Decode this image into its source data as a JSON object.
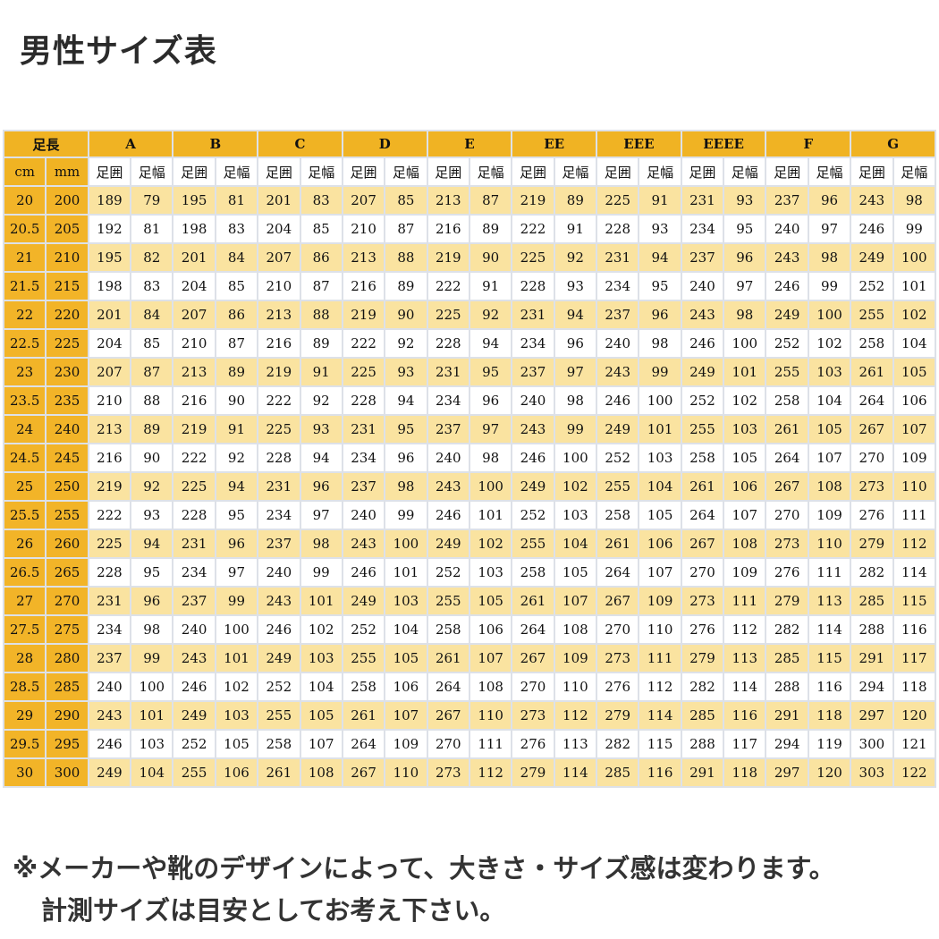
{
  "title": "男性サイズ表",
  "table": {
    "length_header": "足長",
    "width_headers": [
      "A",
      "B",
      "C",
      "D",
      "E",
      "EE",
      "EEE",
      "EEEE",
      "F",
      "G"
    ],
    "unit_headers": [
      "cm",
      "mm"
    ],
    "sub_headers": [
      "足囲",
      "足幅"
    ],
    "colors": {
      "header": "#f0b323",
      "row_highlight": "#fae3a0",
      "border": "#dde1e8"
    },
    "rows": [
      [
        "20",
        "200",
        "189",
        "79",
        "195",
        "81",
        "201",
        "83",
        "207",
        "85",
        "213",
        "87",
        "219",
        "89",
        "225",
        "91",
        "231",
        "93",
        "237",
        "96",
        "243",
        "98"
      ],
      [
        "20.5",
        "205",
        "192",
        "81",
        "198",
        "83",
        "204",
        "85",
        "210",
        "87",
        "216",
        "89",
        "222",
        "91",
        "228",
        "93",
        "234",
        "95",
        "240",
        "97",
        "246",
        "99"
      ],
      [
        "21",
        "210",
        "195",
        "82",
        "201",
        "84",
        "207",
        "86",
        "213",
        "88",
        "219",
        "90",
        "225",
        "92",
        "231",
        "94",
        "237",
        "96",
        "243",
        "98",
        "249",
        "100"
      ],
      [
        "21.5",
        "215",
        "198",
        "83",
        "204",
        "85",
        "210",
        "87",
        "216",
        "89",
        "222",
        "91",
        "228",
        "93",
        "234",
        "95",
        "240",
        "97",
        "246",
        "99",
        "252",
        "101"
      ],
      [
        "22",
        "220",
        "201",
        "84",
        "207",
        "86",
        "213",
        "88",
        "219",
        "90",
        "225",
        "92",
        "231",
        "94",
        "237",
        "96",
        "243",
        "98",
        "249",
        "100",
        "255",
        "102"
      ],
      [
        "22.5",
        "225",
        "204",
        "85",
        "210",
        "87",
        "216",
        "89",
        "222",
        "92",
        "228",
        "94",
        "234",
        "96",
        "240",
        "98",
        "246",
        "100",
        "252",
        "102",
        "258",
        "104"
      ],
      [
        "23",
        "230",
        "207",
        "87",
        "213",
        "89",
        "219",
        "91",
        "225",
        "93",
        "231",
        "95",
        "237",
        "97",
        "243",
        "99",
        "249",
        "101",
        "255",
        "103",
        "261",
        "105"
      ],
      [
        "23.5",
        "235",
        "210",
        "88",
        "216",
        "90",
        "222",
        "92",
        "228",
        "94",
        "234",
        "96",
        "240",
        "98",
        "246",
        "100",
        "252",
        "102",
        "258",
        "104",
        "264",
        "106"
      ],
      [
        "24",
        "240",
        "213",
        "89",
        "219",
        "91",
        "225",
        "93",
        "231",
        "95",
        "237",
        "97",
        "243",
        "99",
        "249",
        "101",
        "255",
        "103",
        "261",
        "105",
        "267",
        "107"
      ],
      [
        "24.5",
        "245",
        "216",
        "90",
        "222",
        "92",
        "228",
        "94",
        "234",
        "96",
        "240",
        "98",
        "246",
        "100",
        "252",
        "103",
        "258",
        "105",
        "264",
        "107",
        "270",
        "109"
      ],
      [
        "25",
        "250",
        "219",
        "92",
        "225",
        "94",
        "231",
        "96",
        "237",
        "98",
        "243",
        "100",
        "249",
        "102",
        "255",
        "104",
        "261",
        "106",
        "267",
        "108",
        "273",
        "110"
      ],
      [
        "25.5",
        "255",
        "222",
        "93",
        "228",
        "95",
        "234",
        "97",
        "240",
        "99",
        "246",
        "101",
        "252",
        "103",
        "258",
        "105",
        "264",
        "107",
        "270",
        "109",
        "276",
        "111"
      ],
      [
        "26",
        "260",
        "225",
        "94",
        "231",
        "96",
        "237",
        "98",
        "243",
        "100",
        "249",
        "102",
        "255",
        "104",
        "261",
        "106",
        "267",
        "108",
        "273",
        "110",
        "279",
        "112"
      ],
      [
        "26.5",
        "265",
        "228",
        "95",
        "234",
        "97",
        "240",
        "99",
        "246",
        "101",
        "252",
        "103",
        "258",
        "105",
        "264",
        "107",
        "270",
        "109",
        "276",
        "111",
        "282",
        "114"
      ],
      [
        "27",
        "270",
        "231",
        "96",
        "237",
        "99",
        "243",
        "101",
        "249",
        "103",
        "255",
        "105",
        "261",
        "107",
        "267",
        "109",
        "273",
        "111",
        "279",
        "113",
        "285",
        "115"
      ],
      [
        "27.5",
        "275",
        "234",
        "98",
        "240",
        "100",
        "246",
        "102",
        "252",
        "104",
        "258",
        "106",
        "264",
        "108",
        "270",
        "110",
        "276",
        "112",
        "282",
        "114",
        "288",
        "116"
      ],
      [
        "28",
        "280",
        "237",
        "99",
        "243",
        "101",
        "249",
        "103",
        "255",
        "105",
        "261",
        "107",
        "267",
        "109",
        "273",
        "111",
        "279",
        "113",
        "285",
        "115",
        "291",
        "117"
      ],
      [
        "28.5",
        "285",
        "240",
        "100",
        "246",
        "102",
        "252",
        "104",
        "258",
        "106",
        "264",
        "108",
        "270",
        "110",
        "276",
        "112",
        "282",
        "114",
        "288",
        "116",
        "294",
        "118"
      ],
      [
        "29",
        "290",
        "243",
        "101",
        "249",
        "103",
        "255",
        "105",
        "261",
        "107",
        "267",
        "110",
        "273",
        "112",
        "279",
        "114",
        "285",
        "116",
        "291",
        "118",
        "297",
        "120"
      ],
      [
        "29.5",
        "295",
        "246",
        "103",
        "252",
        "105",
        "258",
        "107",
        "264",
        "109",
        "270",
        "111",
        "276",
        "113",
        "282",
        "115",
        "288",
        "117",
        "294",
        "119",
        "300",
        "121"
      ],
      [
        "30",
        "300",
        "249",
        "104",
        "255",
        "106",
        "261",
        "108",
        "267",
        "110",
        "273",
        "112",
        "279",
        "114",
        "285",
        "116",
        "291",
        "118",
        "297",
        "120",
        "303",
        "122"
      ]
    ]
  },
  "notes": [
    "※メーカーや靴のデザインによって、大きさ・サイズ感は変わります。",
    "計測サイズは目安としてお考え下さい。"
  ]
}
